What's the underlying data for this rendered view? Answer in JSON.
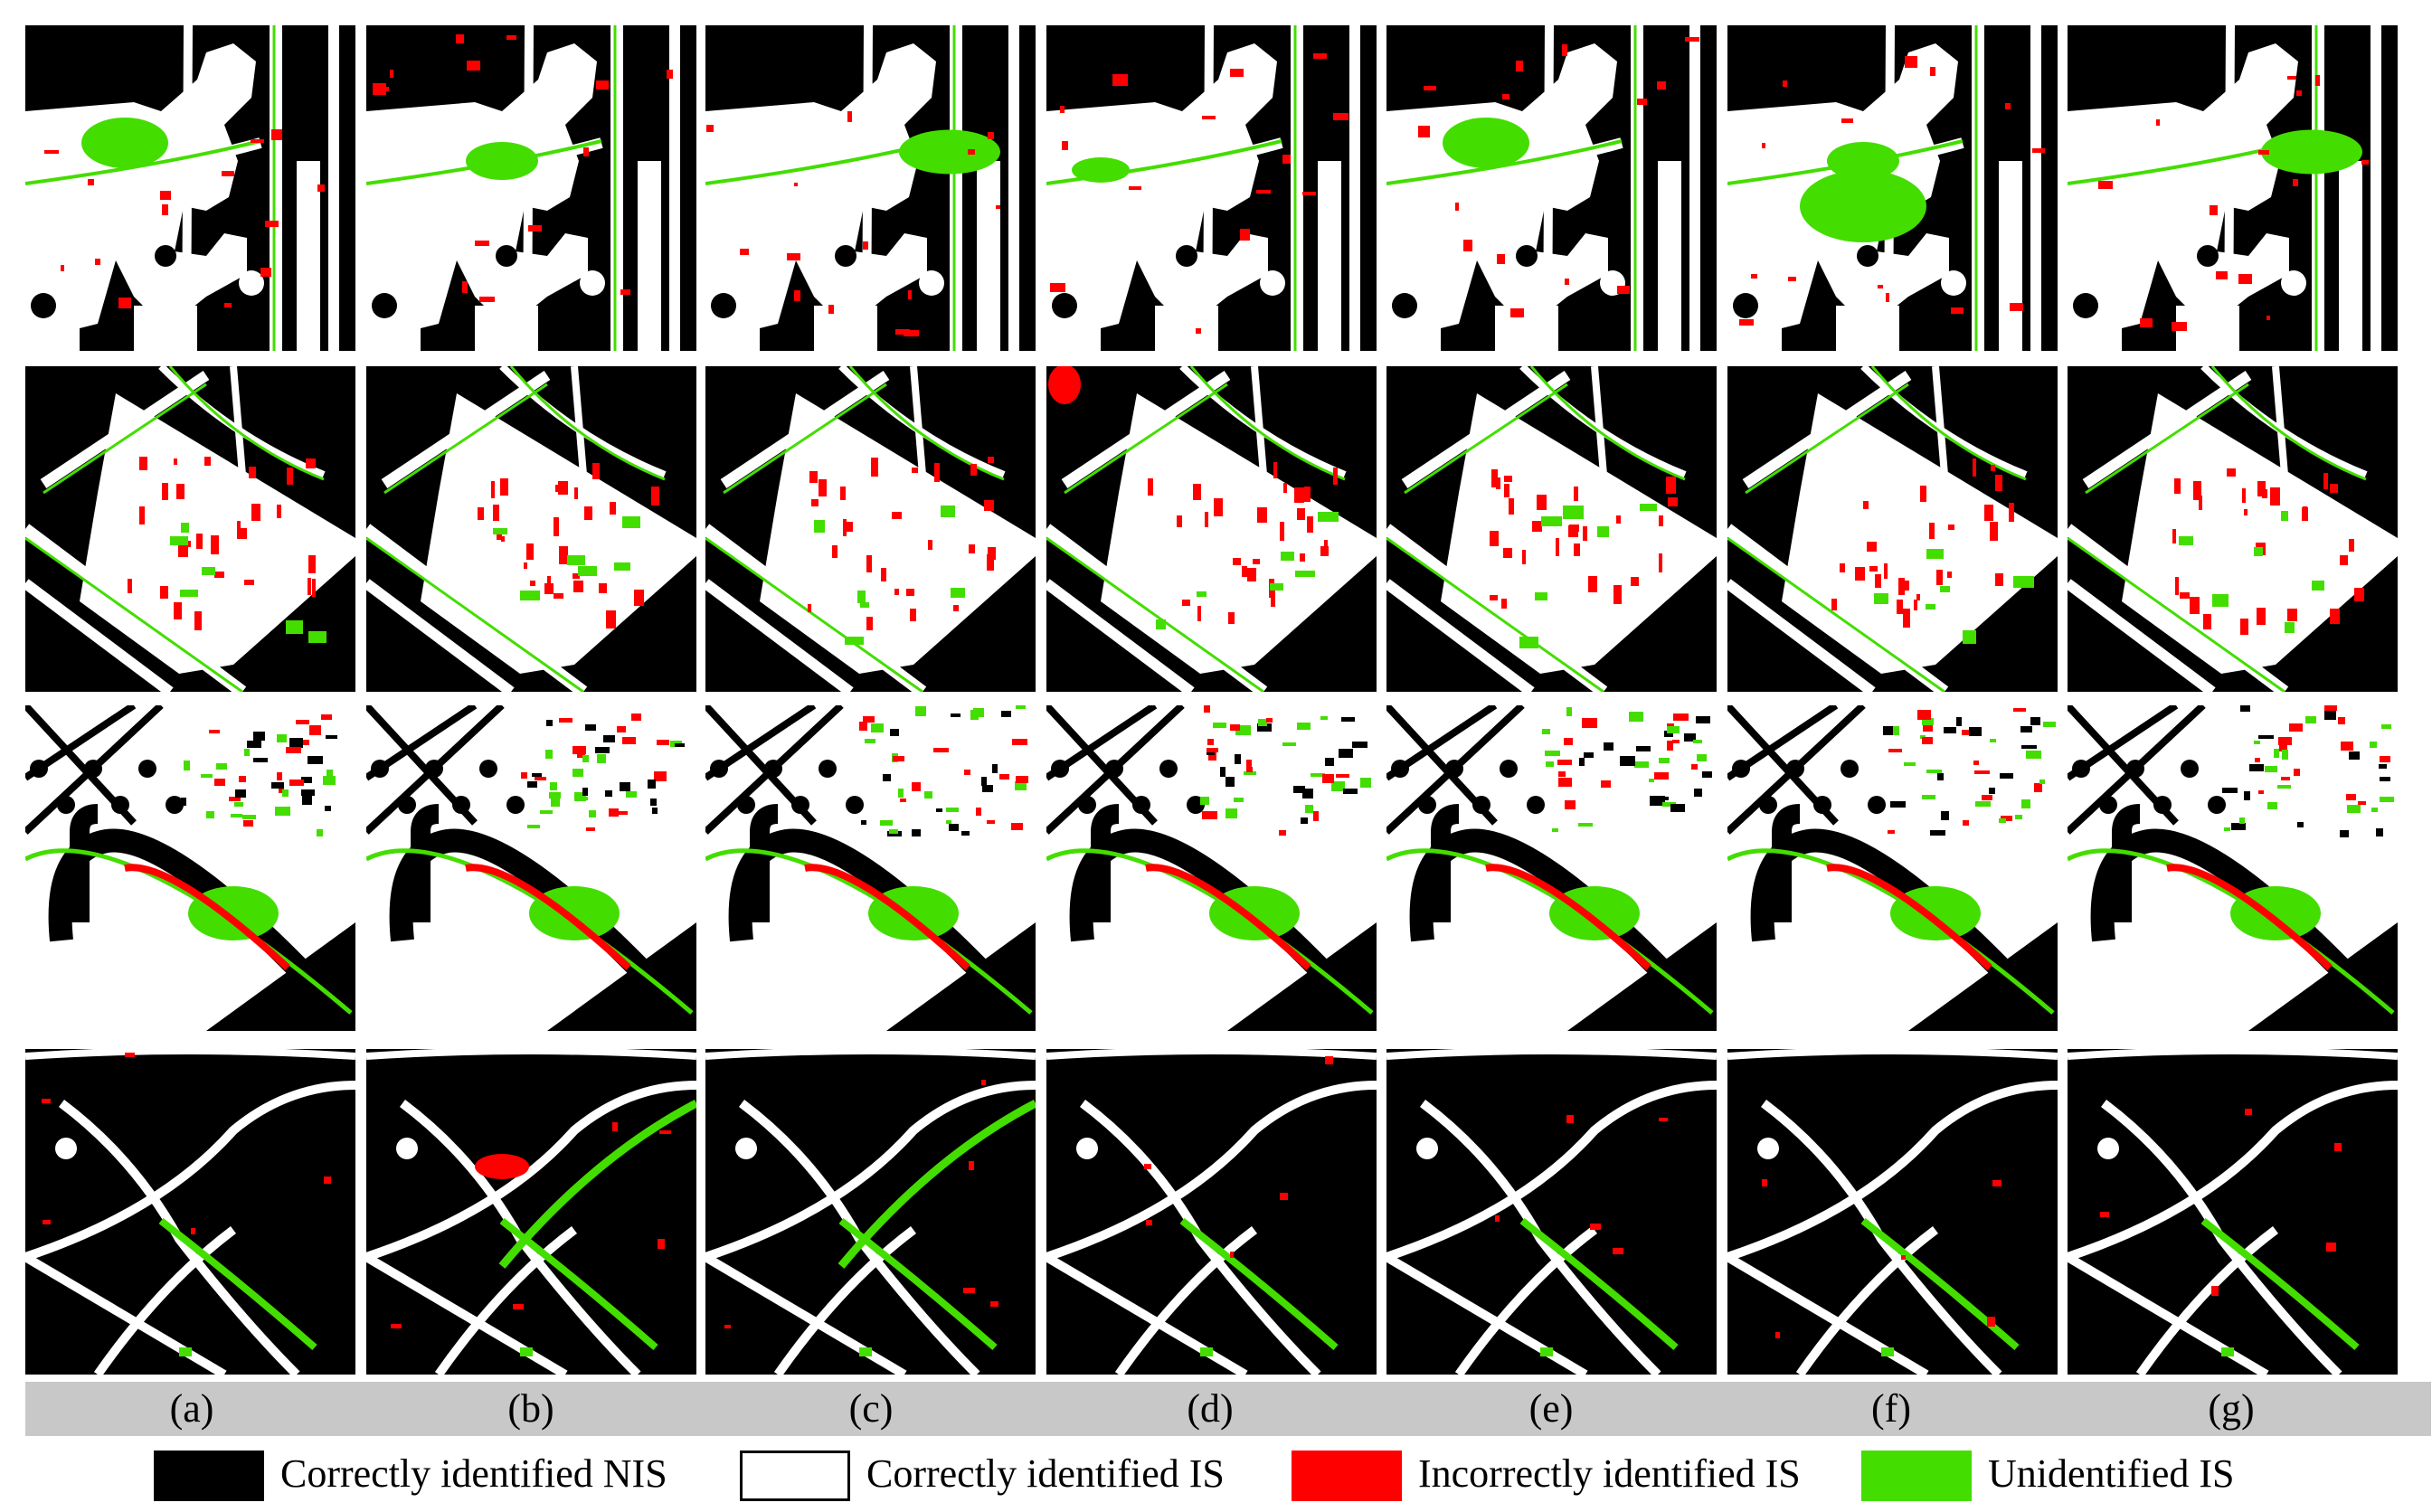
{
  "colors": {
    "nis_correct": "#000000",
    "is_correct": "#ffffff",
    "is_incorrect": "#ff0000",
    "is_unidentified": "#44dd00",
    "label_bar": "#c8c8c8"
  },
  "columns": [
    {
      "label": "(a)"
    },
    {
      "label": "(b)"
    },
    {
      "label": "(c)"
    },
    {
      "label": "(d)"
    },
    {
      "label": "(e)"
    },
    {
      "label": "(f)"
    },
    {
      "label": "(g)"
    }
  ],
  "rows": [
    {
      "scene": "dense-blocks"
    },
    {
      "scene": "diagonal-building"
    },
    {
      "scene": "roundabout-residential"
    },
    {
      "scene": "crossing-roads"
    }
  ],
  "legend": [
    {
      "label": "Correctly identified NIS",
      "color": "#000000"
    },
    {
      "label": "Correctly identified IS",
      "color": "#ffffff"
    },
    {
      "label": "Incorrectly identified IS",
      "color": "#ff0000"
    },
    {
      "label": "Unidentified IS",
      "color": "#44dd00"
    }
  ]
}
